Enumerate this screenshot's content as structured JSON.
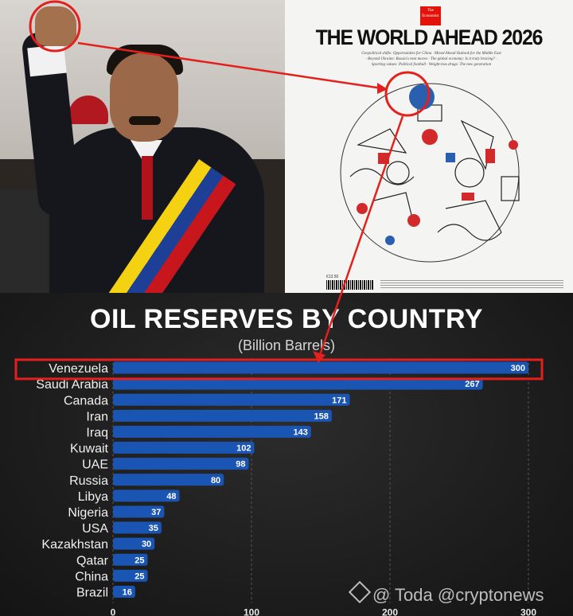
{
  "magazine": {
    "brand": "The Economist",
    "title": "THE WORLD AHEAD 2026",
    "subtitle": "Geopolitical shifts: Opportunities for China · Mixed Ahead Outlook for the Middle East · Beyond Ukraine: Russia's next moves · The global economy: Is it truly bracing? · Sporting values: Political football · Weight-loss drugs: The new generation",
    "price": "€13.50"
  },
  "chart_data": {
    "type": "bar",
    "orientation": "horizontal",
    "title": "OIL RESERVES BY COUNTRY",
    "subtitle": "(Billion Barrels)",
    "categories": [
      "Venezuela",
      "Saudi Arabia",
      "Canada",
      "Iran",
      "Iraq",
      "Kuwait",
      "UAE",
      "Russia",
      "Libya",
      "Nigeria",
      "USA",
      "Kazakhstan",
      "Qatar",
      "China",
      "Brazil"
    ],
    "values": [
      300,
      267,
      171,
      158,
      143,
      102,
      98,
      80,
      48,
      37,
      35,
      30,
      25,
      25,
      16
    ],
    "value_labels": [
      "300",
      "267",
      "171",
      "158",
      "143",
      "102",
      "98",
      "80",
      "48",
      "37",
      "35",
      "30",
      "25",
      "25",
      "16"
    ],
    "xticks": [
      "0",
      "100",
      "200",
      "300"
    ],
    "xtick_values": [
      0,
      100,
      200,
      300
    ],
    "xlim": [
      0,
      300
    ],
    "highlighted_category": "Venezuela",
    "bar_color": "#1b55b4",
    "highlight_color": "#e3201b",
    "grid": true
  },
  "watermark": {
    "text": "@ Toda @cryptonews"
  }
}
